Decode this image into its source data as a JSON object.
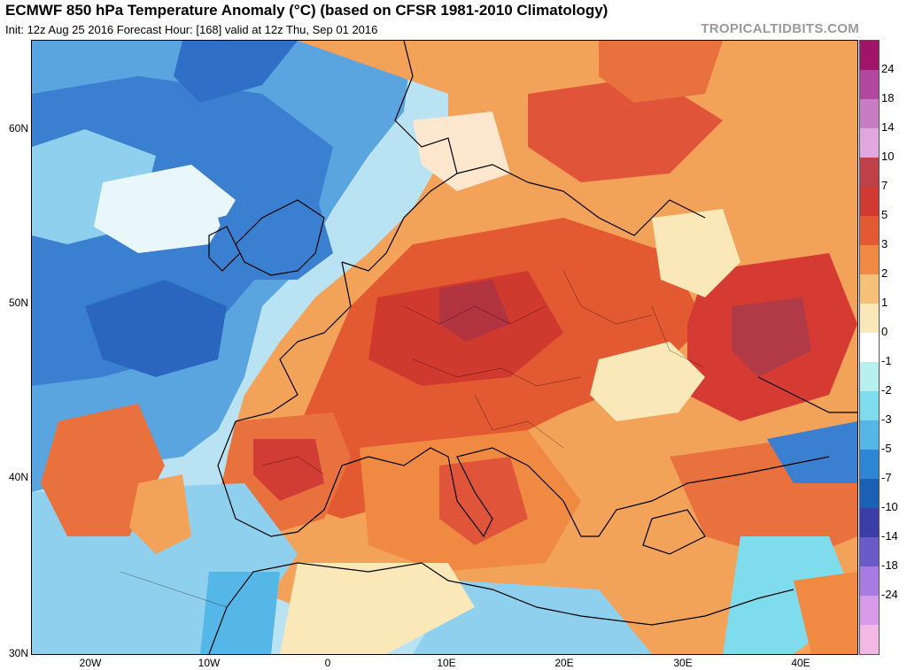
{
  "header": {
    "title": "ECMWF 850 hPa Temperature Anomaly (°C) (based on CFSR 1981-2010 Climatology)",
    "subtitle": "Init: 12z Aug 25 2016   Forecast Hour: [168]   valid at 12z Thu, Sep 01 2016",
    "credit": "TROPICALTIDBITS.COM"
  },
  "map": {
    "region": "Europe / North Africa",
    "lat_labels": [
      "60N",
      "50N",
      "40N",
      "30N"
    ],
    "lon_labels": [
      "20W",
      "10W",
      "0",
      "10E",
      "20E",
      "30E",
      "40E"
    ]
  },
  "colorbar": {
    "labels": [
      "24",
      "18",
      "14",
      "10",
      "7",
      "5",
      "3",
      "2",
      "1",
      "0",
      "-1",
      "-2",
      "-3",
      "-5",
      "-7",
      "-10",
      "-14",
      "-18",
      "-24"
    ],
    "colors": [
      "#a0146a",
      "#b1479f",
      "#c77dc3",
      "#e3a7e0",
      "#c04048",
      "#d03a33",
      "#e35a32",
      "#f08a43",
      "#f7c079",
      "#fbe8b8",
      "#ffffff",
      "#b8f0f0",
      "#7fdcec",
      "#54b7e8",
      "#2f86d6",
      "#1c5fb7",
      "#3b3ea6",
      "#6a5ac8",
      "#a77be1",
      "#d69ae8",
      "#f4b8e6"
    ]
  }
}
